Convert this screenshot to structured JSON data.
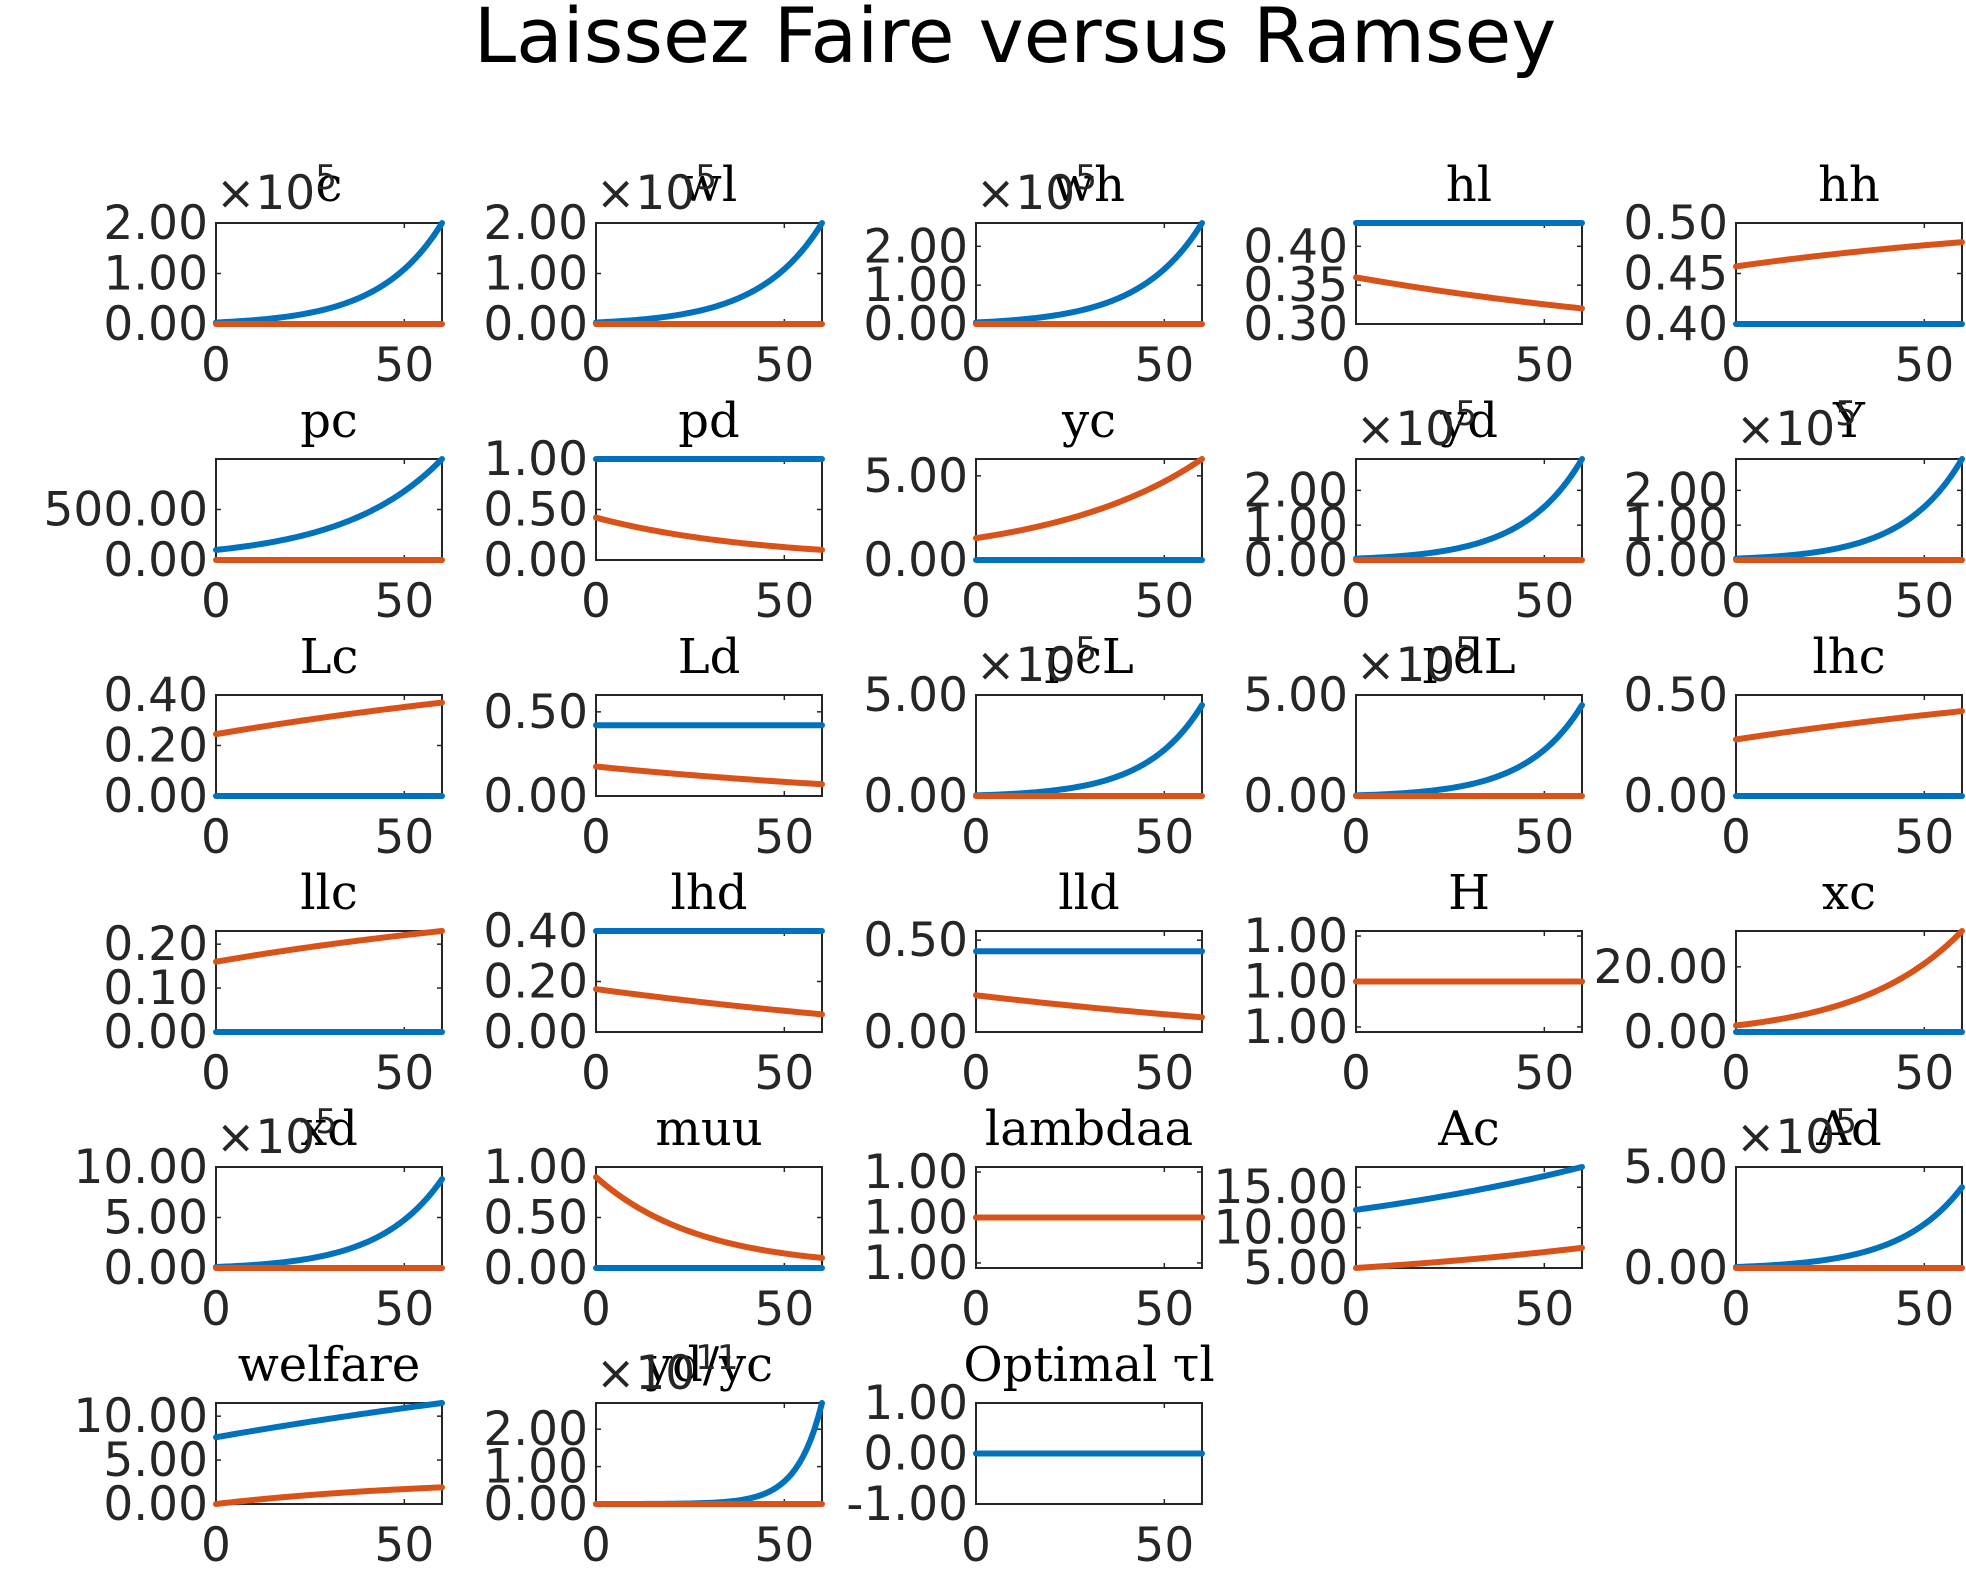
{
  "figure": {
    "title": "Laissez Faire versus Ramsey"
  },
  "colors": {
    "series_1": "#0072bd",
    "series_2": "#d95319"
  },
  "chart_data": [
    {
      "type": "line",
      "title": "c",
      "exponent": "×10^5",
      "xlim": [
        0,
        60
      ],
      "ylim": [
        0,
        2
      ],
      "xticks": [
        "0",
        "50"
      ],
      "yticks": [
        {
          "v": 0,
          "l": "0.00"
        },
        {
          "v": 1,
          "l": "1.00"
        },
        {
          "v": 2,
          "l": "2.00"
        }
      ],
      "series": [
        {
          "start": 0.03,
          "end": 2.0,
          "curve": "exp",
          "k": 3.6
        },
        {
          "start": 0,
          "end": 0,
          "curve": "linear"
        }
      ]
    },
    {
      "type": "line",
      "title": "wl",
      "exponent": "×10^5",
      "xlim": [
        0,
        60
      ],
      "ylim": [
        0,
        2
      ],
      "xticks": [
        "0",
        "50"
      ],
      "yticks": [
        {
          "v": 0,
          "l": "0.00"
        },
        {
          "v": 1,
          "l": "1.00"
        },
        {
          "v": 2,
          "l": "2.00"
        }
      ],
      "series": [
        {
          "start": 0.03,
          "end": 2.0,
          "curve": "exp",
          "k": 3.6
        },
        {
          "start": 0,
          "end": 0,
          "curve": "linear"
        }
      ]
    },
    {
      "type": "line",
      "title": "wh",
      "exponent": "×10^5",
      "xlim": [
        0,
        60
      ],
      "ylim": [
        0,
        2.6
      ],
      "xticks": [
        "0",
        "50"
      ],
      "yticks": [
        {
          "v": 0,
          "l": "0.00"
        },
        {
          "v": 1,
          "l": "1.00"
        },
        {
          "v": 2,
          "l": "2.00"
        }
      ],
      "series": [
        {
          "start": 0.04,
          "end": 2.6,
          "curve": "exp",
          "k": 3.6
        },
        {
          "start": 0,
          "end": 0,
          "curve": "linear"
        }
      ]
    },
    {
      "type": "line",
      "title": "hl",
      "exponent": "",
      "xlim": [
        0,
        60
      ],
      "ylim": [
        0.3,
        0.43
      ],
      "xticks": [
        "0",
        "50"
      ],
      "yticks": [
        {
          "v": 0.3,
          "l": "0.30"
        },
        {
          "v": 0.35,
          "l": "0.35"
        },
        {
          "v": 0.4,
          "l": "0.40"
        }
      ],
      "series": [
        {
          "start": 0.43,
          "end": 0.43,
          "curve": "linear"
        },
        {
          "start": 0.36,
          "end": 0.32,
          "curve": "exp",
          "k": -0.5
        }
      ]
    },
    {
      "type": "line",
      "title": "hh",
      "exponent": "",
      "xlim": [
        0,
        60
      ],
      "ylim": [
        0.4,
        0.5
      ],
      "xticks": [
        "0",
        "50"
      ],
      "yticks": [
        {
          "v": 0.4,
          "l": "0.40"
        },
        {
          "v": 0.45,
          "l": "0.45"
        },
        {
          "v": 0.5,
          "l": "0.50"
        }
      ],
      "series": [
        {
          "start": 0.4,
          "end": 0.4,
          "curve": "linear"
        },
        {
          "start": 0.457,
          "end": 0.481,
          "curve": "exp",
          "k": -0.6
        }
      ]
    },
    {
      "type": "line",
      "title": "pc",
      "exponent": "",
      "xlim": [
        0,
        60
      ],
      "ylim": [
        0,
        1000
      ],
      "xticks": [
        "0",
        "50"
      ],
      "yticks": [
        {
          "v": 0,
          "l": "0.00"
        },
        {
          "v": 500,
          "l": "500.00"
        }
      ],
      "series": [
        {
          "start": 100,
          "end": 1000,
          "curve": "exp",
          "k": 2.3
        },
        {
          "start": 0,
          "end": 0,
          "curve": "linear"
        }
      ]
    },
    {
      "type": "line",
      "title": "pd",
      "exponent": "",
      "xlim": [
        0,
        60
      ],
      "ylim": [
        0,
        1
      ],
      "xticks": [
        "0",
        "50"
      ],
      "yticks": [
        {
          "v": 0,
          "l": "0.00"
        },
        {
          "v": 0.5,
          "l": "0.50"
        },
        {
          "v": 1,
          "l": "1.00"
        }
      ],
      "series": [
        {
          "start": 1,
          "end": 1,
          "curve": "linear"
        },
        {
          "start": 0.42,
          "end": 0.1,
          "curve": "exp",
          "k": -1.4
        }
      ]
    },
    {
      "type": "line",
      "title": "yc",
      "exponent": "",
      "xlim": [
        0,
        60
      ],
      "ylim": [
        0,
        6
      ],
      "xticks": [
        "0",
        "50"
      ],
      "yticks": [
        {
          "v": 0,
          "l": "0.00"
        },
        {
          "v": 5,
          "l": "5.00"
        }
      ],
      "series": [
        {
          "start": 0,
          "end": 0,
          "curve": "linear"
        },
        {
          "start": 1.3,
          "end": 6.0,
          "curve": "exp",
          "k": 1.5
        }
      ]
    },
    {
      "type": "line",
      "title": "yd",
      "exponent": "×10^5",
      "xlim": [
        0,
        60
      ],
      "ylim": [
        0,
        2.9
      ],
      "xticks": [
        "0",
        "50"
      ],
      "yticks": [
        {
          "v": 0,
          "l": "0.00"
        },
        {
          "v": 1,
          "l": "1.00"
        },
        {
          "v": 2,
          "l": "2.00"
        }
      ],
      "series": [
        {
          "start": 0.04,
          "end": 2.9,
          "curve": "exp",
          "k": 3.8
        },
        {
          "start": 0,
          "end": 0,
          "curve": "linear"
        }
      ]
    },
    {
      "type": "line",
      "title": "Y",
      "exponent": "×10^5",
      "xlim": [
        0,
        60
      ],
      "ylim": [
        0,
        2.9
      ],
      "xticks": [
        "0",
        "50"
      ],
      "yticks": [
        {
          "v": 0,
          "l": "0.00"
        },
        {
          "v": 1,
          "l": "1.00"
        },
        {
          "v": 2,
          "l": "2.00"
        }
      ],
      "series": [
        {
          "start": 0.04,
          "end": 2.9,
          "curve": "exp",
          "k": 3.8
        },
        {
          "start": 0,
          "end": 0,
          "curve": "linear"
        }
      ]
    },
    {
      "type": "line",
      "title": "Lc",
      "exponent": "",
      "xlim": [
        0,
        60
      ],
      "ylim": [
        0,
        0.4
      ],
      "xticks": [
        "0",
        "50"
      ],
      "yticks": [
        {
          "v": 0,
          "l": "0.00"
        },
        {
          "v": 0.2,
          "l": "0.20"
        },
        {
          "v": 0.4,
          "l": "0.40"
        }
      ],
      "series": [
        {
          "start": 0,
          "end": 0,
          "curve": "linear"
        },
        {
          "start": 0.245,
          "end": 0.37,
          "curve": "exp",
          "k": -0.4
        }
      ]
    },
    {
      "type": "line",
      "title": "Ld",
      "exponent": "",
      "xlim": [
        0,
        60
      ],
      "ylim": [
        0,
        0.6
      ],
      "xticks": [
        "0",
        "50"
      ],
      "yticks": [
        {
          "v": 0,
          "l": "0.00"
        },
        {
          "v": 0.5,
          "l": "0.50"
        }
      ],
      "series": [
        {
          "start": 0.42,
          "end": 0.42,
          "curve": "linear"
        },
        {
          "start": 0.175,
          "end": 0.07,
          "curve": "exp",
          "k": -0.5
        }
      ]
    },
    {
      "type": "line",
      "title": "pcL",
      "exponent": "×10^5",
      "xlim": [
        0,
        60
      ],
      "ylim": [
        0,
        5
      ],
      "xticks": [
        "0",
        "50"
      ],
      "yticks": [
        {
          "v": 0,
          "l": "0.00"
        },
        {
          "v": 5,
          "l": "5.00"
        }
      ],
      "series": [
        {
          "start": 0.03,
          "end": 4.5,
          "curve": "exp",
          "k": 4.0
        },
        {
          "start": 0,
          "end": 0,
          "curve": "linear"
        }
      ]
    },
    {
      "type": "line",
      "title": "pdL",
      "exponent": "×10^5",
      "xlim": [
        0,
        60
      ],
      "ylim": [
        0,
        5
      ],
      "xticks": [
        "0",
        "50"
      ],
      "yticks": [
        {
          "v": 0,
          "l": "0.00"
        },
        {
          "v": 5,
          "l": "5.00"
        }
      ],
      "series": [
        {
          "start": 0.03,
          "end": 4.5,
          "curve": "exp",
          "k": 4.0
        },
        {
          "start": 0,
          "end": 0,
          "curve": "linear"
        }
      ]
    },
    {
      "type": "line",
      "title": "lhc",
      "exponent": "",
      "xlim": [
        0,
        60
      ],
      "ylim": [
        0,
        0.5
      ],
      "xticks": [
        "0",
        "50"
      ],
      "yticks": [
        {
          "v": 0,
          "l": "0.00"
        },
        {
          "v": 0.5,
          "l": "0.50"
        }
      ],
      "series": [
        {
          "start": 0,
          "end": 0,
          "curve": "linear"
        },
        {
          "start": 0.28,
          "end": 0.42,
          "curve": "exp",
          "k": -0.4
        }
      ]
    },
    {
      "type": "line",
      "title": "llc",
      "exponent": "",
      "xlim": [
        0,
        60
      ],
      "ylim": [
        0,
        0.23
      ],
      "xticks": [
        "0",
        "50"
      ],
      "yticks": [
        {
          "v": 0,
          "l": "0.00"
        },
        {
          "v": 0.1,
          "l": "0.10"
        },
        {
          "v": 0.2,
          "l": "0.20"
        }
      ],
      "series": [
        {
          "start": 0,
          "end": 0,
          "curve": "linear"
        },
        {
          "start": 0.16,
          "end": 0.23,
          "curve": "exp",
          "k": -0.5
        }
      ]
    },
    {
      "type": "line",
      "title": "lhd",
      "exponent": "",
      "xlim": [
        0,
        60
      ],
      "ylim": [
        0,
        0.4
      ],
      "xticks": [
        "0",
        "50"
      ],
      "yticks": [
        {
          "v": 0,
          "l": "0.00"
        },
        {
          "v": 0.2,
          "l": "0.20"
        },
        {
          "v": 0.4,
          "l": "0.40"
        }
      ],
      "series": [
        {
          "start": 0.4,
          "end": 0.4,
          "curve": "linear"
        },
        {
          "start": 0.17,
          "end": 0.07,
          "curve": "exp",
          "k": -0.4
        }
      ]
    },
    {
      "type": "line",
      "title": "lld",
      "exponent": "",
      "xlim": [
        0,
        60
      ],
      "ylim": [
        0,
        0.55
      ],
      "xticks": [
        "0",
        "50"
      ],
      "yticks": [
        {
          "v": 0,
          "l": "0.00"
        },
        {
          "v": 0.5,
          "l": "0.50"
        }
      ],
      "series": [
        {
          "start": 0.44,
          "end": 0.44,
          "curve": "linear"
        },
        {
          "start": 0.2,
          "end": 0.08,
          "curve": "exp",
          "k": -0.4
        }
      ]
    },
    {
      "type": "line",
      "title": "H",
      "exponent": "",
      "xlim": [
        0,
        60
      ],
      "ylim": [
        0.95,
        1.05
      ],
      "xticks": [
        "0",
        "50"
      ],
      "yticks": [
        {
          "v": 0.955,
          "l": "1.00"
        },
        {
          "v": 1.0,
          "l": "1.00"
        },
        {
          "v": 1.045,
          "l": "1.00"
        }
      ],
      "series": [
        {
          "start": 1.0,
          "end": 1.0,
          "curve": "linear"
        },
        {
          "start": 1.0,
          "end": 1.0,
          "curve": "linear"
        }
      ]
    },
    {
      "type": "line",
      "title": "xc",
      "exponent": "",
      "xlim": [
        0,
        60
      ],
      "ylim": [
        0,
        31
      ],
      "xticks": [
        "0",
        "50"
      ],
      "yticks": [
        {
          "v": 0,
          "l": "0.00"
        },
        {
          "v": 20,
          "l": "20.00"
        }
      ],
      "series": [
        {
          "start": 0,
          "end": 0,
          "curve": "linear"
        },
        {
          "start": 2,
          "end": 31,
          "curve": "exp",
          "k": 2.2
        }
      ]
    },
    {
      "type": "line",
      "title": "xd",
      "exponent": "×10^5",
      "xlim": [
        0,
        60
      ],
      "ylim": [
        0,
        10
      ],
      "xticks": [
        "0",
        "50"
      ],
      "yticks": [
        {
          "v": 0,
          "l": "0.00"
        },
        {
          "v": 5,
          "l": "5.00"
        },
        {
          "v": 10,
          "l": "10.00"
        }
      ],
      "series": [
        {
          "start": 0.1,
          "end": 8.8,
          "curve": "exp",
          "k": 3.6
        },
        {
          "start": 0,
          "end": 0,
          "curve": "linear"
        }
      ]
    },
    {
      "type": "line",
      "title": "muu",
      "exponent": "",
      "xlim": [
        0,
        60
      ],
      "ylim": [
        0,
        1
      ],
      "xticks": [
        "0",
        "50"
      ],
      "yticks": [
        {
          "v": 0,
          "l": "0.00"
        },
        {
          "v": 0.5,
          "l": "0.50"
        },
        {
          "v": 1,
          "l": "1.00"
        }
      ],
      "series": [
        {
          "start": 0,
          "end": 0,
          "curve": "linear"
        },
        {
          "start": 0.9,
          "end": 0.1,
          "curve": "exp",
          "k": -2.2
        }
      ]
    },
    {
      "type": "line",
      "title": "lambdaa",
      "exponent": "",
      "xlim": [
        0,
        60
      ],
      "ylim": [
        0.95,
        1.05
      ],
      "xticks": [
        "0",
        "50"
      ],
      "yticks": [
        {
          "v": 0.955,
          "l": "1.00"
        },
        {
          "v": 1.0,
          "l": "1.00"
        },
        {
          "v": 1.045,
          "l": "1.00"
        }
      ],
      "series": [
        {
          "start": 1.0,
          "end": 1.0,
          "curve": "linear"
        },
        {
          "start": 1.0,
          "end": 1.0,
          "curve": "linear"
        }
      ]
    },
    {
      "type": "line",
      "title": "Ac",
      "exponent": "",
      "xlim": [
        0,
        60
      ],
      "ylim": [
        5,
        17.5
      ],
      "xticks": [
        "0",
        "50"
      ],
      "yticks": [
        {
          "v": 5,
          "l": "5.00"
        },
        {
          "v": 10,
          "l": "10.00"
        },
        {
          "v": 15,
          "l": "15.00"
        }
      ],
      "series": [
        {
          "start": 12.2,
          "end": 17.5,
          "curve": "exp",
          "k": 0.6
        },
        {
          "start": 5,
          "end": 7.5,
          "curve": "exp",
          "k": 0.6
        }
      ]
    },
    {
      "type": "line",
      "title": "Ad",
      "exponent": "×10^5",
      "xlim": [
        0,
        60
      ],
      "ylim": [
        0,
        5
      ],
      "xticks": [
        "0",
        "50"
      ],
      "yticks": [
        {
          "v": 0,
          "l": "0.00"
        },
        {
          "v": 5,
          "l": "5.00"
        }
      ],
      "series": [
        {
          "start": 0.05,
          "end": 4.0,
          "curve": "exp",
          "k": 3.6
        },
        {
          "start": 0,
          "end": 0,
          "curve": "linear"
        }
      ]
    },
    {
      "type": "line",
      "title": "welfare",
      "exponent": "",
      "xlim": [
        0,
        60
      ],
      "ylim": [
        0,
        11.5
      ],
      "xticks": [
        "0",
        "50"
      ],
      "yticks": [
        {
          "v": 0,
          "l": "0.00"
        },
        {
          "v": 5,
          "l": "5.00"
        },
        {
          "v": 10,
          "l": "10.00"
        }
      ],
      "series": [
        {
          "start": 7.6,
          "end": 11.5,
          "curve": "exp",
          "k": -0.3
        },
        {
          "start": 0,
          "end": 1.9,
          "curve": "exp",
          "k": -1.0
        }
      ]
    },
    {
      "type": "line",
      "title": "yd/yc",
      "exponent": "×10^11",
      "xlim": [
        0,
        60
      ],
      "ylim": [
        0,
        2.7
      ],
      "xticks": [
        "0",
        "50"
      ],
      "yticks": [
        {
          "v": 0,
          "l": "0.00"
        },
        {
          "v": 1,
          "l": "1.00"
        },
        {
          "v": 2,
          "l": "2.00"
        }
      ],
      "series": [
        {
          "start": 0,
          "end": 2.7,
          "curve": "exp",
          "k": 9.0
        },
        {
          "start": 0,
          "end": 0,
          "curve": "linear"
        }
      ]
    },
    {
      "type": "line",
      "title": "Optimal τl",
      "exponent": "",
      "xlim": [
        0,
        60
      ],
      "ylim": [
        -1,
        1
      ],
      "xticks": [
        "0",
        "50"
      ],
      "yticks": [
        {
          "v": -1,
          "l": "-1.00"
        },
        {
          "v": 0,
          "l": "0.00"
        },
        {
          "v": 1,
          "l": "1.00"
        }
      ],
      "series": [
        {
          "start": 0,
          "end": 0,
          "curve": "linear"
        }
      ]
    }
  ]
}
